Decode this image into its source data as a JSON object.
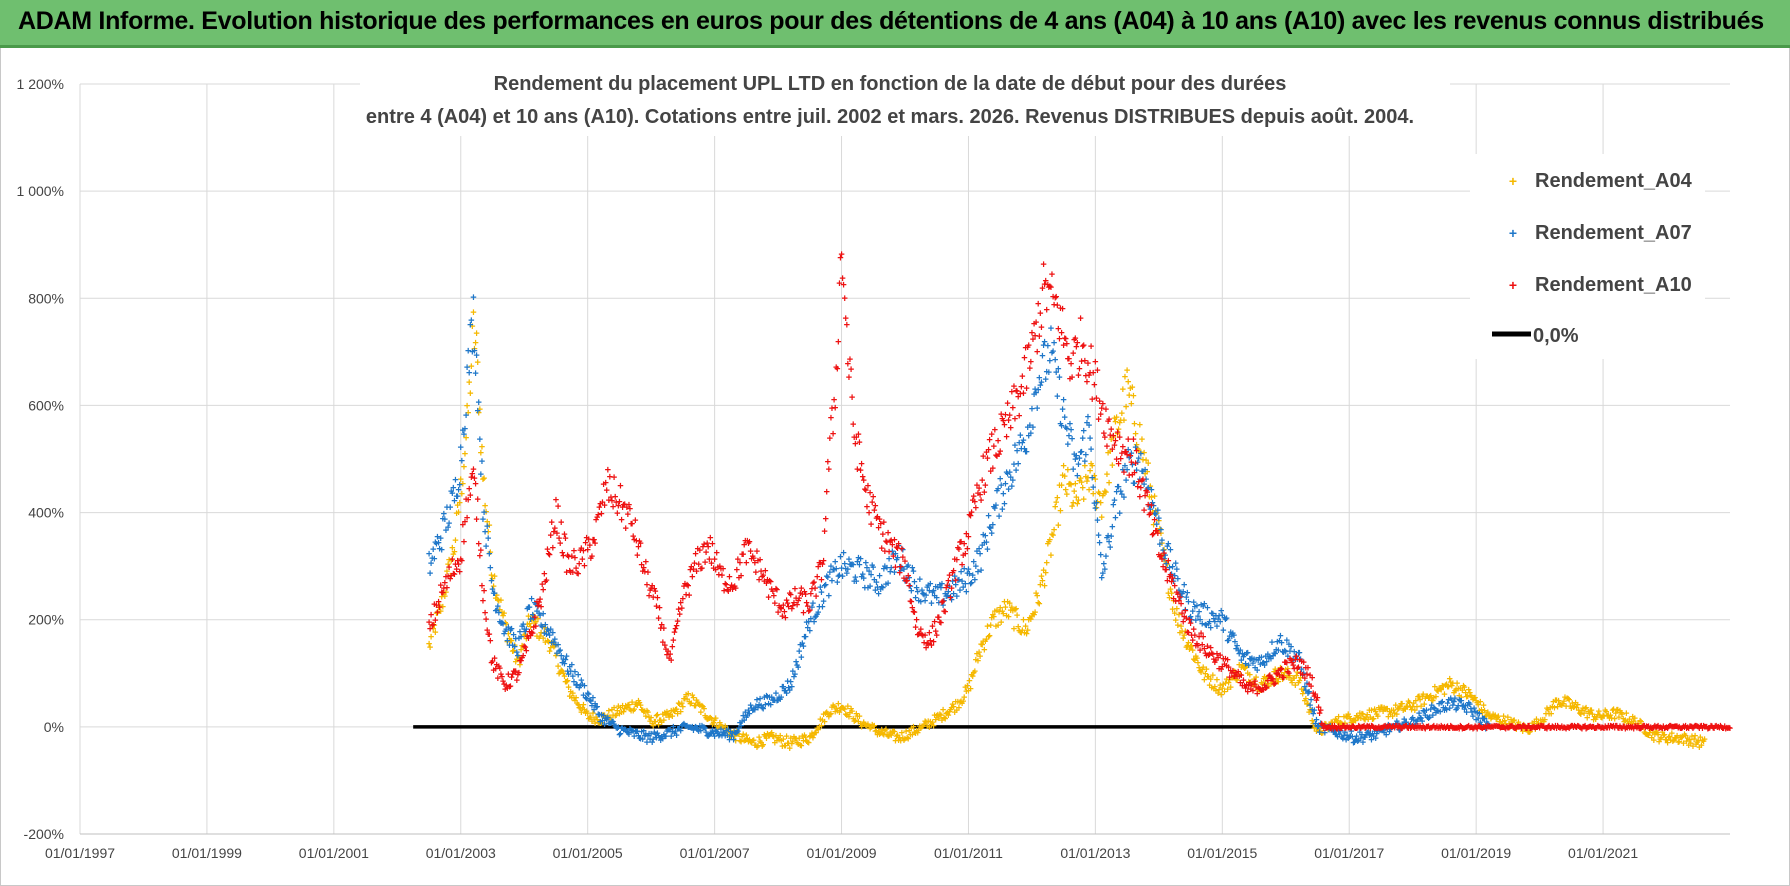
{
  "banner": {
    "title": "ADAM Informe. Evolution historique des performances en euros pour des détentions de 4 ans (A04) à 10 ans (A10) avec les revenus connus distribués"
  },
  "colors": {
    "banner_bg": "#6fbf6f",
    "a04": "#f5b800",
    "a07": "#1f77c9",
    "a10": "#ee1111",
    "zero": "#000000",
    "grid": "#d9d9d9"
  },
  "chart_data": {
    "type": "scatter",
    "title_line1": "Rendement du placement UPL LTD en fonction de la date de début pour des durées",
    "title_line2": "entre 4 (A04) et 10 ans (A10).  Cotations entre juil. 2002 et mars. 2026. Revenus DISTRIBUES depuis août. 2004.",
    "xlabel": "",
    "ylabel": "",
    "xlim": [
      1997.0,
      2023.0
    ],
    "ylim": [
      -200,
      1200
    ],
    "x_ticks": [
      {
        "v": 1997.0,
        "label": "01/01/1997"
      },
      {
        "v": 1999.0,
        "label": "01/01/1999"
      },
      {
        "v": 2001.0,
        "label": "01/01/2001"
      },
      {
        "v": 2003.0,
        "label": "01/01/2003"
      },
      {
        "v": 2005.0,
        "label": "01/01/2005"
      },
      {
        "v": 2007.0,
        "label": "01/01/2007"
      },
      {
        "v": 2009.0,
        "label": "01/01/2009"
      },
      {
        "v": 2011.0,
        "label": "01/01/2011"
      },
      {
        "v": 2013.0,
        "label": "01/01/2013"
      },
      {
        "v": 2015.0,
        "label": "01/01/2015"
      },
      {
        "v": 2017.0,
        "label": "01/01/2017"
      },
      {
        "v": 2019.0,
        "label": "01/01/2019"
      },
      {
        "v": 2021.0,
        "label": "01/01/2021"
      }
    ],
    "y_ticks": [
      {
        "v": -200,
        "label": "-200%"
      },
      {
        "v": 0,
        "label": "0%"
      },
      {
        "v": 200,
        "label": "200%"
      },
      {
        "v": 400,
        "label": "400%"
      },
      {
        "v": 600,
        "label": "600%"
      },
      {
        "v": 800,
        "label": "800%"
      },
      {
        "v": 1000,
        "label": "1 000%"
      },
      {
        "v": 1200,
        "label": "1 200%"
      }
    ],
    "legend_position": "top-right",
    "series": [
      {
        "name": "Rendement_A04",
        "color": "#f5b800",
        "x": [
          2002.5,
          2002.7,
          2002.9,
          2003.0,
          2003.1,
          2003.2,
          2003.25,
          2003.35,
          2003.5,
          2003.7,
          2003.9,
          2004.1,
          2004.4,
          2004.7,
          2005.0,
          2005.2,
          2005.5,
          2005.8,
          2006.0,
          2006.3,
          2006.6,
          2007.0,
          2007.3,
          2007.6,
          2007.9,
          2008.2,
          2008.5,
          2008.8,
          2009.0,
          2009.3,
          2009.6,
          2009.9,
          2010.2,
          2010.5,
          2010.8,
          2011.0,
          2011.2,
          2011.4,
          2011.6,
          2011.9,
          2012.1,
          2012.3,
          2012.5,
          2012.7,
          2012.9,
          2013.1,
          2013.3,
          2013.5,
          2013.7,
          2013.9,
          2014.1,
          2014.3,
          2014.5,
          2014.7,
          2015.0,
          2015.3,
          2015.6,
          2015.9,
          2016.2,
          2016.5,
          2016.8,
          2017.1,
          2017.4,
          2017.7,
          2018.0,
          2018.3,
          2018.6,
          2018.9,
          2019.2,
          2019.5,
          2019.8,
          2020.0,
          2020.3,
          2020.6,
          2020.9,
          2021.2,
          2021.5,
          2021.8,
          2022.0,
          2022.2,
          2022.4,
          2022.6
        ],
        "y": [
          150,
          230,
          340,
          440,
          560,
          740,
          700,
          470,
          290,
          190,
          120,
          200,
          160,
          70,
          20,
          15,
          30,
          45,
          10,
          20,
          55,
          10,
          -15,
          -30,
          -20,
          -30,
          -20,
          30,
          40,
          10,
          -10,
          -20,
          -5,
          15,
          40,
          70,
          150,
          200,
          220,
          180,
          240,
          340,
          460,
          420,
          470,
          420,
          540,
          630,
          540,
          420,
          300,
          200,
          150,
          100,
          70,
          110,
          80,
          100,
          90,
          -10,
          10,
          20,
          25,
          30,
          40,
          60,
          80,
          60,
          20,
          10,
          -5,
          10,
          50,
          35,
          20,
          25,
          10,
          -15,
          -20,
          -20,
          -25,
          -30
        ]
      },
      {
        "name": "Rendement_A07",
        "color": "#1f77c9",
        "x": [
          2002.5,
          2002.7,
          2002.9,
          2003.0,
          2003.1,
          2003.2,
          2003.25,
          2003.35,
          2003.5,
          2003.7,
          2003.9,
          2004.1,
          2004.4,
          2004.7,
          2005.0,
          2005.2,
          2005.5,
          2005.8,
          2006.0,
          2006.3,
          2006.6,
          2007.0,
          2007.3,
          2007.6,
          2007.9,
          2008.2,
          2008.5,
          2008.8,
          2009.0,
          2009.3,
          2009.6,
          2009.9,
          2010.2,
          2010.5,
          2010.8,
          2011.0,
          2011.2,
          2011.4,
          2011.6,
          2011.9,
          2012.1,
          2012.3,
          2012.5,
          2012.7,
          2012.9,
          2013.1,
          2013.3,
          2013.5,
          2013.7,
          2013.9,
          2014.1,
          2014.3,
          2014.5,
          2014.7,
          2015.0,
          2015.3,
          2015.6,
          2015.9,
          2016.2,
          2016.5,
          2016.8,
          2017.1,
          2017.4,
          2017.7,
          2018.0,
          2018.3,
          2018.6,
          2018.9,
          2019.2
        ],
        "y": [
          300,
          360,
          430,
          500,
          650,
          770,
          680,
          420,
          260,
          180,
          150,
          220,
          180,
          110,
          60,
          20,
          -5,
          -15,
          -20,
          -10,
          0,
          -10,
          -15,
          40,
          50,
          80,
          200,
          270,
          300,
          290,
          270,
          320,
          260,
          240,
          260,
          280,
          320,
          400,
          460,
          540,
          650,
          700,
          580,
          480,
          560,
          280,
          400,
          480,
          500,
          420,
          330,
          270,
          220,
          210,
          200,
          130,
          120,
          160,
          130,
          0,
          -10,
          -20,
          -15,
          0,
          10,
          30,
          45,
          35,
          0
        ]
      },
      {
        "name": "Rendement_A10",
        "color": "#ee1111",
        "x": [
          2002.5,
          2002.7,
          2002.9,
          2003.0,
          2003.1,
          2003.2,
          2003.25,
          2003.35,
          2003.5,
          2003.7,
          2003.9,
          2004.1,
          2004.3,
          2004.5,
          2004.7,
          2004.9,
          2005.1,
          2005.3,
          2005.5,
          2005.7,
          2005.9,
          2006.1,
          2006.3,
          2006.5,
          2006.7,
          2006.9,
          2007.1,
          2007.3,
          2007.5,
          2007.7,
          2007.9,
          2008.1,
          2008.3,
          2008.5,
          2008.7,
          2008.8,
          2008.9,
          2009.0,
          2009.1,
          2009.2,
          2009.4,
          2009.6,
          2009.8,
          2010.0,
          2010.2,
          2010.4,
          2010.6,
          2010.8,
          2011.0,
          2011.2,
          2011.4,
          2011.6,
          2011.8,
          2012.0,
          2012.2,
          2012.4,
          2012.6,
          2012.8,
          2013.0,
          2013.2,
          2013.4,
          2013.6,
          2013.8,
          2014.0,
          2014.2,
          2014.5,
          2014.8,
          2015.1,
          2015.4,
          2015.7,
          2016.0,
          2016.2,
          2016.4,
          2016.6,
          2017.0,
          2017.5,
          2018.0,
          2018.5,
          2019.0,
          2019.5,
          2020.0,
          2020.5,
          2021.0,
          2021.5,
          2022.0,
          2022.5,
          2023.0
        ],
        "y": [
          180,
          250,
          300,
          320,
          420,
          460,
          420,
          260,
          120,
          80,
          100,
          170,
          260,
          400,
          300,
          310,
          350,
          450,
          420,
          380,
          290,
          220,
          120,
          240,
          300,
          340,
          280,
          270,
          330,
          300,
          250,
          220,
          240,
          230,
          300,
          500,
          620,
          900,
          700,
          550,
          430,
          370,
          330,
          300,
          180,
          160,
          220,
          300,
          360,
          460,
          520,
          560,
          620,
          700,
          820,
          780,
          680,
          720,
          640,
          560,
          520,
          500,
          420,
          330,
          270,
          180,
          140,
          110,
          70,
          80,
          110,
          120,
          90,
          0,
          0,
          0,
          0,
          0,
          0,
          0,
          0,
          0,
          0,
          0,
          0,
          0,
          0
        ]
      },
      {
        "name": "0,0%",
        "color": "#000000",
        "x": [
          2002.25,
          2016.7
        ],
        "y": [
          0,
          0
        ]
      }
    ]
  }
}
